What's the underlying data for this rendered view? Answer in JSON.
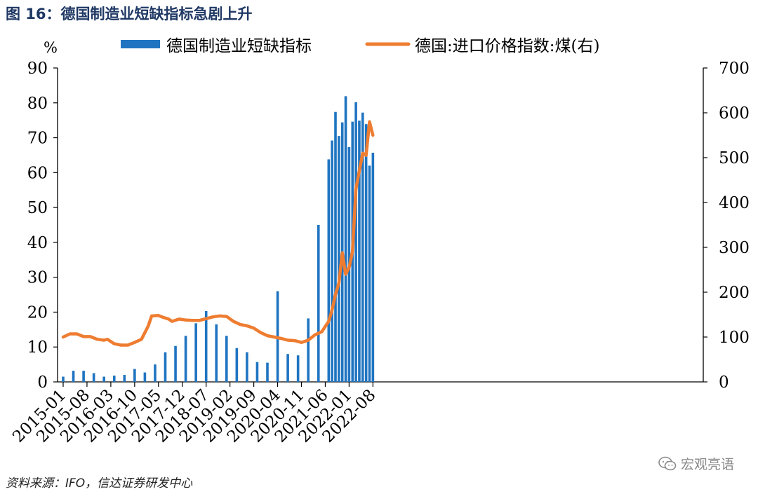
{
  "figure_title": "图 16：德国制造业短缺指标急剧上升",
  "source_note": "资料来源：IFO，信达证券研发中心",
  "watermark": "宏观亮语",
  "colors": {
    "bar": "#1f74c1",
    "line": "#ee7d31",
    "title": "#1f3864"
  },
  "chart_data": {
    "type": "bar+line",
    "unit_left": "%",
    "legend_placement": "top",
    "x_ticks": [
      "2015-01",
      "2015-08",
      "2016-03",
      "2016-10",
      "2017-05",
      "2017-12",
      "2018-07",
      "2019-02",
      "2019-09",
      "2020-04",
      "2020-11",
      "2021-06",
      "2022-01",
      "2022-08"
    ],
    "y_left": {
      "min": 0,
      "max": 90,
      "ticks": [
        0,
        10,
        20,
        30,
        40,
        50,
        60,
        70,
        80,
        90
      ]
    },
    "y_right": {
      "min": 0,
      "max": 700,
      "ticks": [
        0,
        100,
        200,
        300,
        400,
        500,
        600,
        700
      ]
    },
    "series": [
      {
        "name": "德国制造业短缺指标",
        "type": "bar",
        "axis": "left",
        "points": [
          {
            "x": "2015-01",
            "y": 1.5
          },
          {
            "x": "2015-04",
            "y": 3.2
          },
          {
            "x": "2015-07",
            "y": 3.2
          },
          {
            "x": "2015-10",
            "y": 2.5
          },
          {
            "x": "2016-01",
            "y": 1.5
          },
          {
            "x": "2016-04",
            "y": 1.8
          },
          {
            "x": "2016-07",
            "y": 2.0
          },
          {
            "x": "2016-10",
            "y": 3.7
          },
          {
            "x": "2017-01",
            "y": 2.7
          },
          {
            "x": "2017-04",
            "y": 5.0
          },
          {
            "x": "2017-07",
            "y": 8.5
          },
          {
            "x": "2017-10",
            "y": 10.3
          },
          {
            "x": "2018-01",
            "y": 13.2
          },
          {
            "x": "2018-04",
            "y": 16.8
          },
          {
            "x": "2018-07",
            "y": 20.3
          },
          {
            "x": "2018-10",
            "y": 16.5
          },
          {
            "x": "2019-01",
            "y": 13.2
          },
          {
            "x": "2019-04",
            "y": 9.7
          },
          {
            "x": "2019-07",
            "y": 8.5
          },
          {
            "x": "2019-10",
            "y": 5.7
          },
          {
            "x": "2020-01",
            "y": 5.5
          },
          {
            "x": "2020-04",
            "y": 26.0
          },
          {
            "x": "2020-07",
            "y": 8.0
          },
          {
            "x": "2020-10",
            "y": 7.6
          },
          {
            "x": "2021-01",
            "y": 18.2
          },
          {
            "x": "2021-04",
            "y": 45.0
          },
          {
            "x": "2021-07",
            "y": 63.8
          },
          {
            "x": "2021-08",
            "y": 69.2
          },
          {
            "x": "2021-09",
            "y": 77.4
          },
          {
            "x": "2021-10",
            "y": 70.5
          },
          {
            "x": "2021-11",
            "y": 74.4
          },
          {
            "x": "2021-12",
            "y": 81.9
          },
          {
            "x": "2022-01",
            "y": 67.3
          },
          {
            "x": "2022-02",
            "y": 74.6
          },
          {
            "x": "2022-03",
            "y": 80.2
          },
          {
            "x": "2022-04",
            "y": 74.9
          },
          {
            "x": "2022-05",
            "y": 77.2
          },
          {
            "x": "2022-06",
            "y": 73.9
          },
          {
            "x": "2022-07",
            "y": 62.0
          },
          {
            "x": "2022-08",
            "y": 65.7
          }
        ]
      },
      {
        "name": "德国:进口价格指数:煤(右)",
        "type": "line",
        "axis": "right",
        "points": [
          {
            "x": "2015-01",
            "y": 100
          },
          {
            "x": "2015-03",
            "y": 107
          },
          {
            "x": "2015-05",
            "y": 107
          },
          {
            "x": "2015-07",
            "y": 101
          },
          {
            "x": "2015-09",
            "y": 101
          },
          {
            "x": "2015-11",
            "y": 95
          },
          {
            "x": "2016-01",
            "y": 93
          },
          {
            "x": "2016-02",
            "y": 95
          },
          {
            "x": "2016-04",
            "y": 85
          },
          {
            "x": "2016-06",
            "y": 82
          },
          {
            "x": "2016-08",
            "y": 82
          },
          {
            "x": "2016-10",
            "y": 88
          },
          {
            "x": "2016-12",
            "y": 95
          },
          {
            "x": "2017-02",
            "y": 125
          },
          {
            "x": "2017-03",
            "y": 147
          },
          {
            "x": "2017-05",
            "y": 148
          },
          {
            "x": "2017-06",
            "y": 145
          },
          {
            "x": "2017-08",
            "y": 140
          },
          {
            "x": "2017-09",
            "y": 135
          },
          {
            "x": "2017-11",
            "y": 140
          },
          {
            "x": "2018-01",
            "y": 138
          },
          {
            "x": "2018-03",
            "y": 137
          },
          {
            "x": "2018-05",
            "y": 137
          },
          {
            "x": "2018-07",
            "y": 141
          },
          {
            "x": "2018-09",
            "y": 145
          },
          {
            "x": "2018-11",
            "y": 147
          },
          {
            "x": "2019-01",
            "y": 146
          },
          {
            "x": "2019-03",
            "y": 135
          },
          {
            "x": "2019-05",
            "y": 128
          },
          {
            "x": "2019-07",
            "y": 125
          },
          {
            "x": "2019-09",
            "y": 120
          },
          {
            "x": "2019-11",
            "y": 110
          },
          {
            "x": "2020-01",
            "y": 103
          },
          {
            "x": "2020-03",
            "y": 100
          },
          {
            "x": "2020-05",
            "y": 97
          },
          {
            "x": "2020-07",
            "y": 93
          },
          {
            "x": "2020-09",
            "y": 92
          },
          {
            "x": "2020-11",
            "y": 88
          },
          {
            "x": "2021-01",
            "y": 93
          },
          {
            "x": "2021-03",
            "y": 105
          },
          {
            "x": "2021-05",
            "y": 112
          },
          {
            "x": "2021-07",
            "y": 135
          },
          {
            "x": "2021-08",
            "y": 160
          },
          {
            "x": "2021-09",
            "y": 195
          },
          {
            "x": "2021-10",
            "y": 220
          },
          {
            "x": "2021-11",
            "y": 288
          },
          {
            "x": "2021-12",
            "y": 240
          },
          {
            "x": "2022-01",
            "y": 255
          },
          {
            "x": "2022-02",
            "y": 290
          },
          {
            "x": "2022-03",
            "y": 430
          },
          {
            "x": "2022-04",
            "y": 470
          },
          {
            "x": "2022-05",
            "y": 510
          },
          {
            "x": "2022-06",
            "y": 505
          },
          {
            "x": "2022-07",
            "y": 580
          },
          {
            "x": "2022-08",
            "y": 550
          }
        ]
      }
    ]
  }
}
